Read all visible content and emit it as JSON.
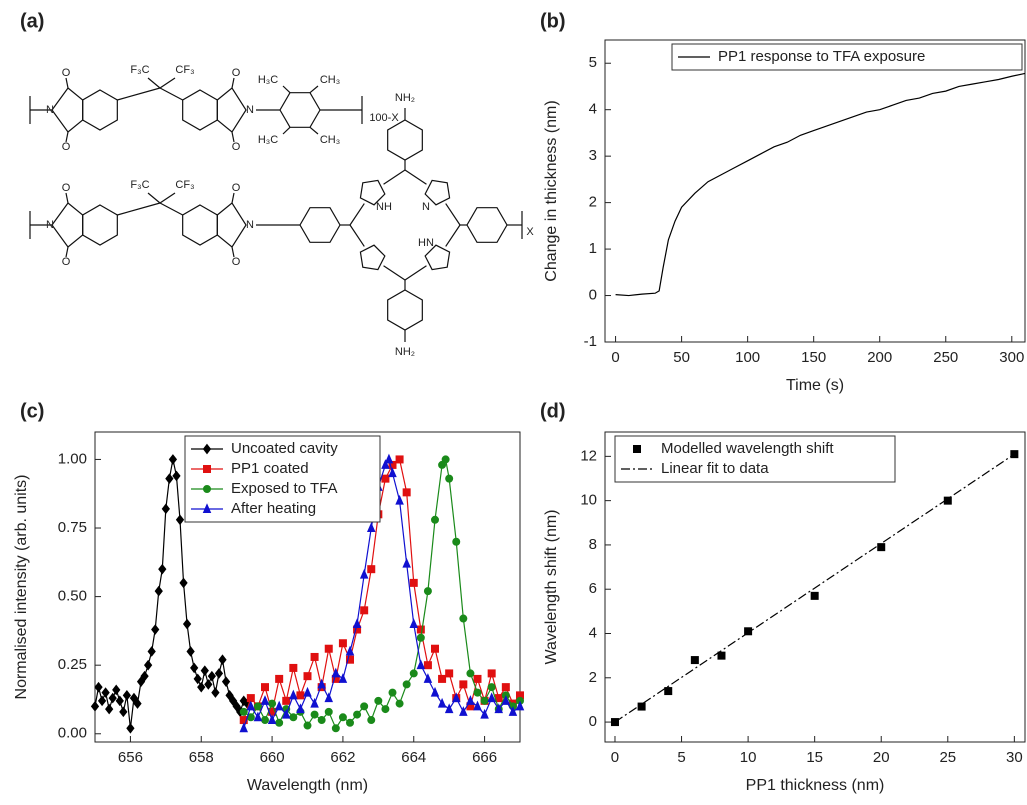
{
  "panel_labels": [
    "(a)",
    "(b)",
    "(c)",
    "(d)"
  ],
  "structure": {
    "labels": [
      "O",
      "O",
      "F₃C",
      "CF₃",
      "O",
      "O",
      "N",
      "N",
      "H₃C",
      "CH₃",
      "H₃C",
      "CH₃",
      "100-X",
      "O",
      "O",
      "F₃C",
      "CF₃",
      "O",
      "O",
      "N",
      "N",
      "NH",
      "N",
      "HN",
      "NH₂",
      "NH₂",
      "X"
    ]
  },
  "chart_data": [
    {
      "type": "line",
      "xlabel": "Time (s)",
      "ylabel": "Change in thickness (nm)",
      "x": [
        0,
        10,
        20,
        30,
        33,
        36,
        40,
        45,
        50,
        60,
        70,
        80,
        90,
        100,
        110,
        120,
        130,
        140,
        150,
        160,
        170,
        180,
        190,
        200,
        210,
        220,
        230,
        240,
        250,
        260,
        270,
        280,
        290,
        300,
        310
      ],
      "series": [
        {
          "name": "PP1 response to TFA exposure",
          "color": "#000000",
          "marker": "none",
          "line": "solid",
          "values": [
            0.02,
            0.0,
            0.03,
            0.05,
            0.1,
            0.6,
            1.2,
            1.6,
            1.9,
            2.2,
            2.45,
            2.6,
            2.75,
            2.9,
            3.05,
            3.2,
            3.3,
            3.45,
            3.55,
            3.65,
            3.75,
            3.85,
            3.95,
            4.0,
            4.1,
            4.2,
            4.25,
            4.35,
            4.4,
            4.5,
            4.55,
            4.6,
            4.65,
            4.72,
            4.78
          ]
        }
      ],
      "xlim": [
        -8,
        310
      ],
      "ylim": [
        -1,
        5.5
      ],
      "xticks": [
        0,
        50,
        100,
        150,
        200,
        250,
        300
      ],
      "yticks": [
        -1,
        0,
        1,
        2,
        3,
        4,
        5
      ],
      "legend": "upper right"
    },
    {
      "type": "line",
      "xlabel": "Wavelength (nm)",
      "ylabel": "Normalised intensity (arb. units)",
      "series": [
        {
          "name": "Uncoated cavity",
          "color": "#000000",
          "marker": "diamond",
          "line": "solid",
          "x": [
            655.0,
            655.1,
            655.2,
            655.3,
            655.4,
            655.5,
            655.6,
            655.7,
            655.8,
            655.9,
            656.0,
            656.1,
            656.2,
            656.3,
            656.4,
            656.5,
            656.6,
            656.7,
            656.8,
            656.9,
            657.0,
            657.1,
            657.2,
            657.3,
            657.4,
            657.5,
            657.6,
            657.7,
            657.8,
            657.9,
            658.0,
            658.1,
            658.2,
            658.3,
            658.4,
            658.5,
            658.6,
            658.7,
            658.8,
            658.9,
            659.0,
            659.1,
            659.2,
            659.3
          ],
          "values": [
            0.1,
            0.17,
            0.12,
            0.15,
            0.09,
            0.13,
            0.16,
            0.12,
            0.08,
            0.14,
            0.02,
            0.13,
            0.11,
            0.19,
            0.21,
            0.25,
            0.3,
            0.38,
            0.52,
            0.6,
            0.82,
            0.93,
            1.0,
            0.94,
            0.78,
            0.55,
            0.4,
            0.3,
            0.24,
            0.2,
            0.17,
            0.23,
            0.18,
            0.21,
            0.15,
            0.22,
            0.27,
            0.19,
            0.14,
            0.12,
            0.1,
            0.08,
            0.12,
            0.11
          ]
        },
        {
          "name": "PP1 coated",
          "color": "#e01010",
          "marker": "square",
          "line": "solid",
          "x": [
            659.2,
            659.4,
            659.6,
            659.8,
            660.0,
            660.2,
            660.4,
            660.6,
            660.8,
            661.0,
            661.2,
            661.4,
            661.6,
            661.8,
            662.0,
            662.2,
            662.4,
            662.6,
            662.8,
            663.0,
            663.2,
            663.4,
            663.6,
            663.8,
            664.0,
            664.2,
            664.4,
            664.6,
            664.8,
            665.0,
            665.2,
            665.4,
            665.6,
            665.8,
            666.0,
            666.2,
            666.4,
            666.6,
            666.8,
            667.0
          ],
          "values": [
            0.05,
            0.13,
            0.1,
            0.17,
            0.08,
            0.2,
            0.12,
            0.24,
            0.14,
            0.21,
            0.28,
            0.17,
            0.31,
            0.2,
            0.33,
            0.27,
            0.38,
            0.45,
            0.6,
            0.8,
            0.93,
            0.98,
            1.0,
            0.88,
            0.55,
            0.38,
            0.25,
            0.31,
            0.2,
            0.22,
            0.13,
            0.18,
            0.1,
            0.2,
            0.12,
            0.22,
            0.13,
            0.17,
            0.11,
            0.14
          ]
        },
        {
          "name": "Exposed to TFA",
          "color": "#1a8a1a",
          "marker": "circle",
          "line": "solid",
          "x": [
            659.2,
            659.4,
            659.6,
            659.8,
            660.0,
            660.2,
            660.4,
            660.6,
            660.8,
            661.0,
            661.2,
            661.4,
            661.6,
            661.8,
            662.0,
            662.2,
            662.4,
            662.6,
            662.8,
            663.0,
            663.2,
            663.4,
            663.6,
            663.8,
            664.0,
            664.2,
            664.4,
            664.6,
            664.8,
            664.9,
            665.0,
            665.2,
            665.4,
            665.6,
            665.8,
            666.0,
            666.2,
            666.4,
            666.6,
            666.8,
            667.0
          ],
          "values": [
            0.08,
            0.06,
            0.1,
            0.05,
            0.11,
            0.04,
            0.09,
            0.06,
            0.08,
            0.03,
            0.07,
            0.05,
            0.08,
            0.02,
            0.06,
            0.04,
            0.07,
            0.1,
            0.05,
            0.12,
            0.09,
            0.15,
            0.11,
            0.18,
            0.22,
            0.35,
            0.52,
            0.78,
            0.98,
            1.0,
            0.93,
            0.7,
            0.42,
            0.22,
            0.15,
            0.12,
            0.17,
            0.09,
            0.14,
            0.1,
            0.12
          ]
        },
        {
          "name": "After heating",
          "color": "#1010d0",
          "marker": "triangle",
          "line": "solid",
          "x": [
            659.2,
            659.4,
            659.6,
            659.8,
            660.0,
            660.2,
            660.4,
            660.6,
            660.8,
            661.0,
            661.2,
            661.4,
            661.6,
            661.8,
            662.0,
            662.2,
            662.4,
            662.6,
            662.8,
            663.0,
            663.2,
            663.3,
            663.4,
            663.6,
            663.8,
            664.0,
            664.2,
            664.4,
            664.6,
            664.8,
            665.0,
            665.2,
            665.4,
            665.6,
            665.8,
            666.0,
            666.2,
            666.4,
            666.6,
            666.8,
            667.0
          ],
          "values": [
            0.02,
            0.1,
            0.06,
            0.12,
            0.05,
            0.1,
            0.07,
            0.14,
            0.09,
            0.15,
            0.11,
            0.18,
            0.13,
            0.22,
            0.2,
            0.3,
            0.4,
            0.58,
            0.75,
            0.9,
            0.98,
            1.0,
            0.95,
            0.85,
            0.62,
            0.4,
            0.25,
            0.2,
            0.15,
            0.11,
            0.09,
            0.13,
            0.08,
            0.12,
            0.1,
            0.07,
            0.13,
            0.09,
            0.12,
            0.08,
            0.1
          ]
        }
      ],
      "xlim": [
        655,
        667
      ],
      "ylim": [
        -0.03,
        1.1
      ],
      "xticks": [
        656,
        658,
        660,
        662,
        664,
        666
      ],
      "yticks": [
        {
          "value": 0,
          "label": "0.00"
        },
        0.25,
        {
          "value": 0.5,
          "label": "0.50"
        },
        0.75,
        {
          "value": 1,
          "label": "1.00"
        }
      ],
      "legend": "upper left"
    },
    {
      "type": "scatter",
      "xlabel": "PP1 thickness (nm)",
      "ylabel": "Wavelength shift (nm)",
      "series": [
        {
          "name": "Modelled wavelength shift",
          "color": "#000000",
          "marker": "square",
          "line": "none",
          "x": [
            0,
            2,
            4,
            6,
            8,
            10,
            15,
            20,
            25,
            30
          ],
          "values": [
            0,
            0.7,
            1.4,
            2.8,
            3.0,
            4.1,
            5.7,
            7.9,
            10.0,
            12.1
          ]
        },
        {
          "name": "Linear fit to data",
          "color": "#000000",
          "marker": "none",
          "line": "dashdot",
          "x": [
            0,
            30
          ],
          "values": [
            0,
            12.1
          ]
        }
      ],
      "xlim": [
        -0.75,
        30.8
      ],
      "ylim": [
        -0.9,
        13.1
      ],
      "xticks": [
        0,
        5,
        10,
        15,
        20,
        25,
        30
      ],
      "yticks": [
        0,
        2,
        4,
        6,
        8,
        10,
        12
      ],
      "legend": "upper left"
    }
  ]
}
